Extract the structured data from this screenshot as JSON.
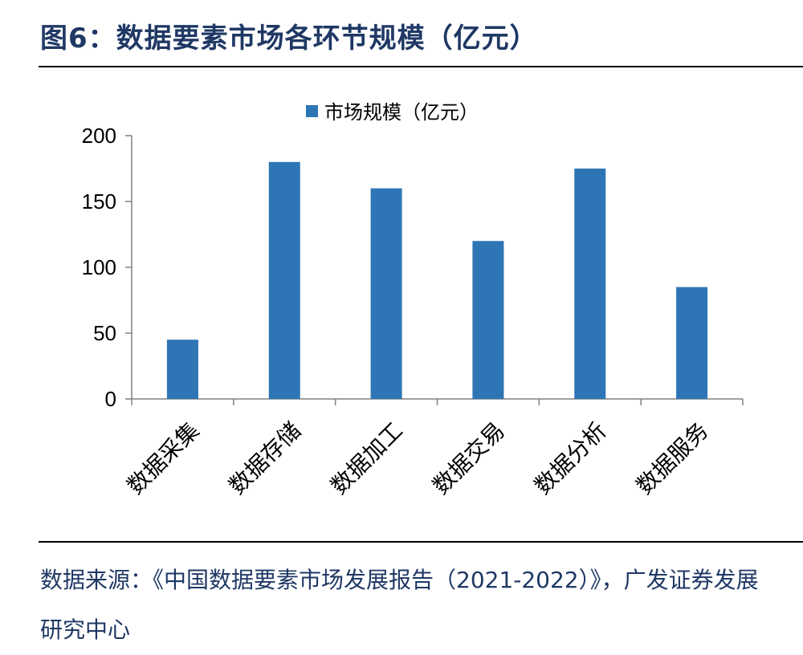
{
  "figure": {
    "title": "图6：数据要素市场各环节规模（亿元）"
  },
  "chart_data": {
    "type": "bar",
    "categories": [
      "数据采集",
      "数据存储",
      "数据加工",
      "数据交易",
      "数据分析",
      "数据服务"
    ],
    "series": [
      {
        "name": "市场规模（亿元）",
        "values": [
          45,
          180,
          160,
          120,
          175,
          85
        ],
        "color": "#2E75B6"
      }
    ],
    "ylim": [
      0,
      200
    ],
    "yticks": [
      "0",
      "50",
      "100",
      "150",
      "200"
    ],
    "grid": false,
    "legend_position": "top-center"
  },
  "source": {
    "text": "数据来源：《中国数据要素市场发展报告（2021-2022）》，广发证券发展研究中心"
  }
}
